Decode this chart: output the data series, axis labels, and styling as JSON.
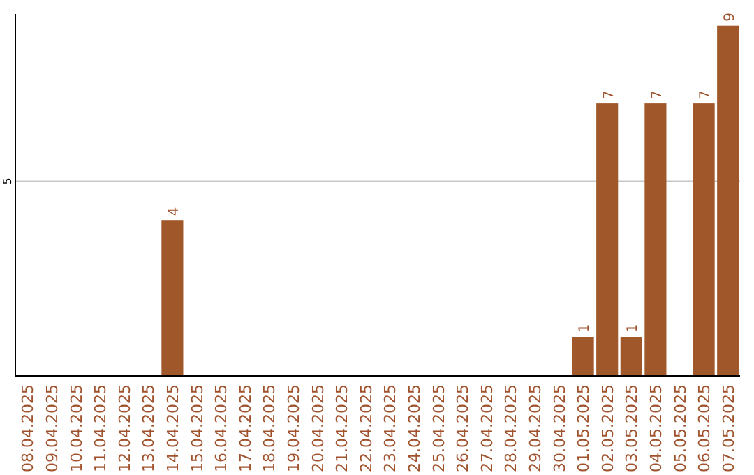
{
  "chart_data": {
    "type": "bar",
    "categories": [
      "08.04.2025",
      "09.04.2025",
      "10.04.2025",
      "11.04.2025",
      "12.04.2025",
      "13.04.2025",
      "14.04.2025",
      "15.04.2025",
      "16.04.2025",
      "17.04.2025",
      "18.04.2025",
      "19.04.2025",
      "20.04.2025",
      "21.04.2025",
      "22.04.2025",
      "23.04.2025",
      "24.04.2025",
      "25.04.2025",
      "26.04.2025",
      "27.04.2025",
      "28.04.2025",
      "29.04.2025",
      "30.04.2025",
      "01.05.2025",
      "02.05.2025",
      "03.05.2025",
      "04.05.2025",
      "05.05.2025",
      "06.05.2025",
      "07.05.2025"
    ],
    "values": [
      0,
      0,
      0,
      0,
      0,
      0,
      4,
      0,
      0,
      0,
      0,
      0,
      0,
      0,
      0,
      0,
      0,
      0,
      0,
      0,
      0,
      0,
      0,
      1,
      7,
      1,
      7,
      0,
      7,
      9
    ],
    "value_labels": [
      null,
      null,
      null,
      null,
      null,
      null,
      "4",
      null,
      null,
      null,
      null,
      null,
      null,
      null,
      null,
      null,
      null,
      null,
      null,
      null,
      null,
      null,
      null,
      "1",
      "7",
      "1",
      "7",
      null,
      "7",
      "9"
    ],
    "color": "#a0572a",
    "ylim": [
      0,
      9.3
    ],
    "yticks": [
      5
    ],
    "grid": "y"
  }
}
